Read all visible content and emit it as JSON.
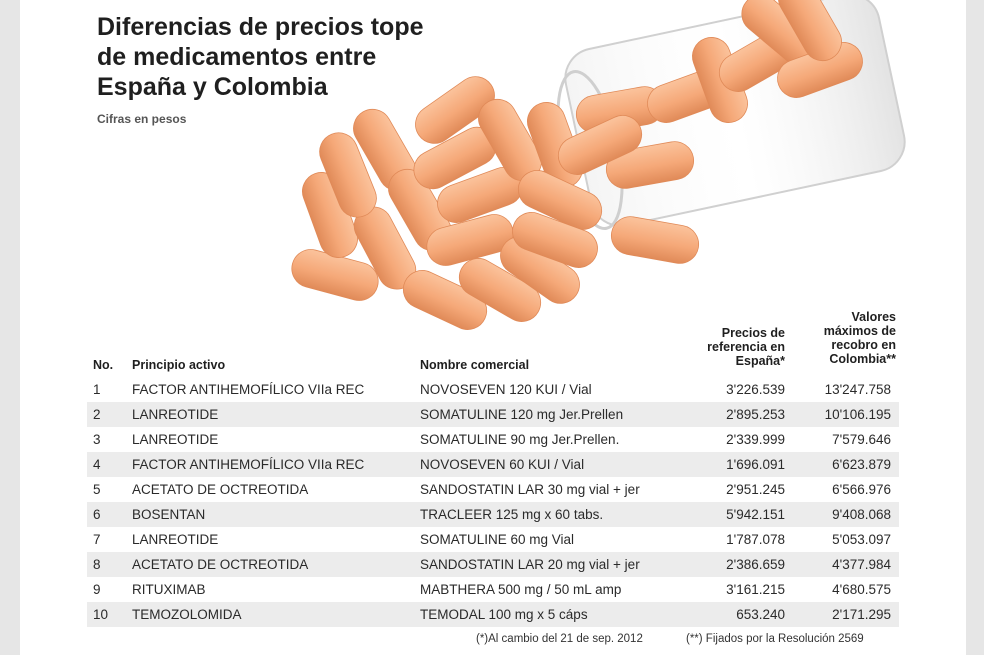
{
  "header": {
    "title": "Diferencias de precios tope de medicamentos entre España y Colombia",
    "subtitle": "Cifras en pesos"
  },
  "columns": {
    "no": "No.",
    "principio": "Principio activo",
    "nombre": "Nombre comercial",
    "espana": "Precios de referencia en España*",
    "colombia": "Valores máximos de recobro en Colombia**"
  },
  "footnotes": {
    "espana": "(*)Al cambio del 21 de sep. 2012",
    "colombia": "(**) Fijados por la Resolución 2569"
  },
  "colors": {
    "pill": "#f5a878",
    "pill_dark": "#e08a58",
    "row_shade": "#ececec"
  },
  "chart_data": {
    "type": "table",
    "title": "Diferencias de precios tope de medicamentos entre España y Colombia",
    "subtitle": "Cifras en pesos",
    "rows": [
      {
        "no": "1",
        "principio": "FACTOR ANTIHEMOFÍLICO VIIa REC",
        "nombre": "NOVOSEVEN 120 KUI / Vial",
        "espana": "3'226.539",
        "colombia": "13'247.758"
      },
      {
        "no": "2",
        "principio": "LANREOTIDE",
        "nombre": "SOMATULINE 120 mg Jer.Prellen",
        "espana": "2'895.253",
        "colombia": "10'106.195"
      },
      {
        "no": "3",
        "principio": "LANREOTIDE",
        "nombre": "SOMATULINE 90 mg Jer.Prellen.",
        "espana": "2'339.999",
        "colombia": "7'579.646"
      },
      {
        "no": "4",
        "principio": "FACTOR ANTIHEMOFÍLICO VIIa REC",
        "nombre": "NOVOSEVEN 60 KUI / Vial",
        "espana": "1'696.091",
        "colombia": "6'623.879"
      },
      {
        "no": "5",
        "principio": "ACETATO DE OCTREOTIDA",
        "nombre": "SANDOSTATIN LAR 30 mg vial + jer",
        "espana": "2'951.245",
        "colombia": "6'566.976"
      },
      {
        "no": "6",
        "principio": "BOSENTAN",
        "nombre": "TRACLEER 125 mg x 60 tabs.",
        "espana": "5'942.151",
        "colombia": "9'408.068"
      },
      {
        "no": "7",
        "principio": "LANREOTIDE",
        "nombre": "SOMATULINE 60 mg Vial",
        "espana": "1'787.078",
        "colombia": "5'053.097"
      },
      {
        "no": "8",
        "principio": "ACETATO DE OCTREOTIDA",
        "nombre": "SANDOSTATIN LAR 20 mg vial + jer",
        "espana": "2'386.659",
        "colombia": "4'377.984"
      },
      {
        "no": "9",
        "principio": "RITUXIMAB",
        "nombre": "MABTHERA 500 mg / 50 mL amp",
        "espana": "3'161.215",
        "colombia": "4'680.575"
      },
      {
        "no": "10",
        "principio": "TEMOZOLOMIDA",
        "nombre": "TEMODAL 100 mg x 5 cáps",
        "espana": "653.240",
        "colombia": "2'171.295"
      }
    ]
  }
}
